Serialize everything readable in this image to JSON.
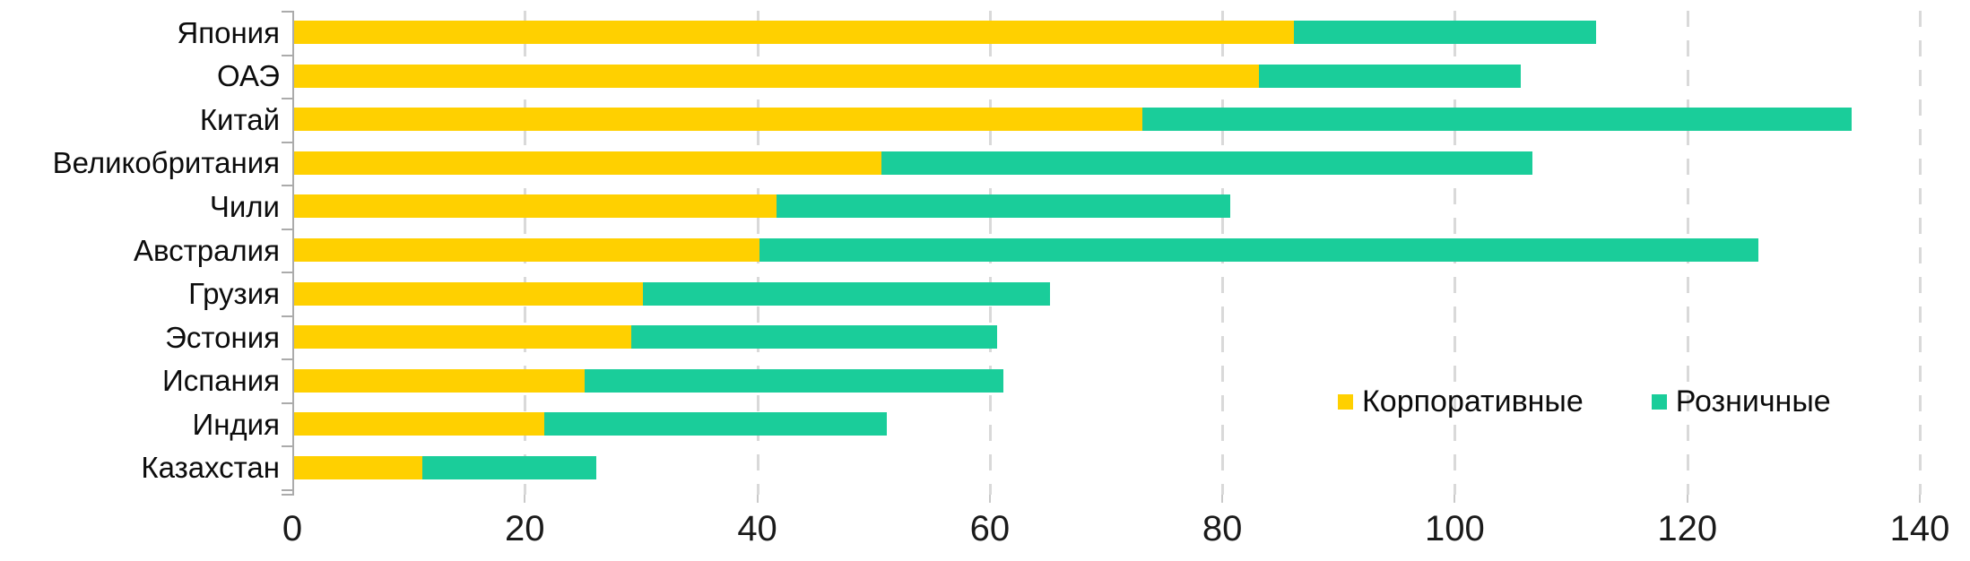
{
  "chart_data": {
    "type": "bar",
    "orientation": "horizontal",
    "stacked": true,
    "title": "",
    "xlabel": "",
    "ylabel": "",
    "xlim": [
      0,
      140
    ],
    "x_ticks": [
      "0",
      "20",
      "40",
      "60",
      "80",
      "100",
      "120",
      "140"
    ],
    "grid": "vertical-dashed-lines",
    "legend_position": "inside-right-middle",
    "categories": [
      "Япония",
      "ОАЭ",
      "Китай",
      "Великобритания",
      "Чили",
      "Австралия",
      "Грузия",
      "Эстония",
      "Испания",
      "Индия",
      "Казахстан"
    ],
    "series": [
      {
        "key": "corporate",
        "name": "Корпоративные",
        "color": "#FFD000",
        "values": [
          86,
          83,
          73,
          50.5,
          41.5,
          40,
          30,
          29,
          25,
          21.5,
          11
        ]
      },
      {
        "key": "retail",
        "name": "Розничные",
        "color": "#1ACD9A",
        "values": [
          26,
          22.5,
          61,
          56,
          39,
          86,
          35,
          31.5,
          36,
          29.5,
          15
        ]
      }
    ],
    "totals": [
      112,
      105.5,
      134,
      106.5,
      80.5,
      126,
      65,
      60.5,
      61,
      51,
      26
    ]
  },
  "colors": {
    "corporate": "#FFD000",
    "retail": "#1ACD9A",
    "gridline": "#D9D9D9",
    "axis": "#ABABAB",
    "text": "#0C0C0C",
    "background": "#FFFFFF"
  }
}
